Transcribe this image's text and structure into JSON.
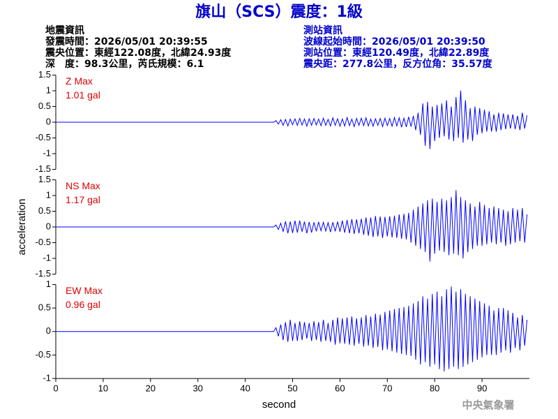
{
  "header": {
    "title": "旗山（SCS）震度：1級",
    "left": [
      "地震資訊",
      "發震時間：2026/05/01 20:39:55",
      "震央位置：東經122.08度，北緯24.93度",
      "深　度：98.3公里，芮氏規模：6.1"
    ],
    "right": [
      "測站資訊",
      "波線起始時間：2026/05/01 20:39:50",
      "測站位置：東經120.49度，北緯22.89度",
      "震央距：277.8公里，反方位角：35.57度"
    ],
    "footer": "中央氣象署"
  },
  "chart_data": [
    {
      "type": "line",
      "annotations": [
        "Z Max",
        "1.01 gal"
      ],
      "color": "#0000ff",
      "xlim": [
        0,
        100
      ],
      "ylim": [
        -1.5,
        1.5
      ],
      "yticks": [
        -1.5,
        -1,
        -0.5,
        0,
        0.5,
        1,
        1.5
      ],
      "x": [
        0,
        46,
        46.5,
        47,
        47.5,
        48,
        48.5,
        49,
        49.5,
        50,
        50.5,
        51,
        51.5,
        52,
        52.5,
        53,
        53.5,
        54,
        54.5,
        55,
        55.5,
        56,
        56.5,
        57,
        57.5,
        58,
        58.5,
        59,
        59.5,
        60,
        60.5,
        61,
        61.5,
        62,
        62.5,
        63,
        63.5,
        64,
        64.5,
        65,
        65.5,
        66,
        66.5,
        67,
        67.5,
        68,
        68.5,
        69,
        69.5,
        70,
        70.5,
        71,
        71.5,
        72,
        72.5,
        73,
        73.5,
        74,
        74.5,
        75,
        75.5,
        76,
        76.5,
        77,
        77.5,
        78,
        78.5,
        79,
        79.5,
        80,
        80.5,
        81,
        81.5,
        82,
        82.5,
        83,
        83.5,
        84,
        84.5,
        85,
        85.5,
        86,
        86.5,
        87,
        87.5,
        88,
        88.5,
        89,
        89.5,
        90,
        90.5,
        91,
        91.5,
        92,
        92.5,
        93,
        93.5,
        94,
        94.5,
        95,
        95.5,
        96,
        96.5,
        97,
        97.5,
        98,
        98.5,
        99,
        99.5
      ],
      "values": [
        0,
        0,
        0.05,
        -0.06,
        0.08,
        -0.1,
        0.09,
        -0.12,
        0.1,
        -0.08,
        0.11,
        -0.1,
        0.12,
        -0.09,
        0.1,
        -0.13,
        0.11,
        -0.1,
        0.12,
        -0.09,
        0.1,
        -0.11,
        0.13,
        -0.1,
        0.09,
        -0.12,
        0.14,
        -0.1,
        0.11,
        -0.13,
        0.1,
        -0.12,
        0.15,
        -0.11,
        0.1,
        -0.14,
        0.12,
        -0.1,
        0.13,
        -0.11,
        0.14,
        -0.12,
        0.1,
        -0.13,
        0.11,
        -0.1,
        0.12,
        -0.14,
        0.13,
        -0.11,
        0.12,
        -0.13,
        0.15,
        -0.12,
        0.14,
        -0.16,
        0.13,
        -0.15,
        0.17,
        -0.14,
        0.2,
        -0.25,
        0.3,
        -0.4,
        0.6,
        -0.75,
        0.65,
        -0.85,
        0.5,
        -0.6,
        0.55,
        -0.5,
        0.6,
        -0.45,
        0.7,
        -0.55,
        0.5,
        -0.6,
        0.8,
        -0.5,
        1.01,
        -0.65,
        0.7,
        -0.55,
        0.45,
        -0.6,
        0.5,
        -0.4,
        0.45,
        -0.35,
        0.4,
        -0.3,
        0.35,
        -0.3,
        0.25,
        -0.3,
        0.3,
        -0.25,
        0.28,
        -0.22,
        0.25,
        -0.2,
        0.25,
        -0.22,
        0.2,
        -0.25,
        0.3,
        -0.2,
        0.22
      ]
    },
    {
      "type": "line",
      "annotations": [
        "NS Max",
        "1.17 gal"
      ],
      "color": "#0000ff",
      "ylabel": "acceleration",
      "xlim": [
        0,
        100
      ],
      "ylim": [
        -1.5,
        1.5
      ],
      "yticks": [
        -1.5,
        -1,
        -0.5,
        0,
        0.5,
        1,
        1.5
      ],
      "x": [
        0,
        46,
        46.5,
        47,
        47.5,
        48,
        48.5,
        49,
        49.5,
        50,
        50.5,
        51,
        51.5,
        52,
        52.5,
        53,
        53.5,
        54,
        54.5,
        55,
        55.5,
        56,
        56.5,
        57,
        57.5,
        58,
        58.5,
        59,
        59.5,
        60,
        60.5,
        61,
        61.5,
        62,
        62.5,
        63,
        63.5,
        64,
        64.5,
        65,
        65.5,
        66,
        66.5,
        67,
        67.5,
        68,
        68.5,
        69,
        69.5,
        70,
        70.5,
        71,
        71.5,
        72,
        72.5,
        73,
        73.5,
        74,
        74.5,
        75,
        75.5,
        76,
        76.5,
        77,
        77.5,
        78,
        78.5,
        79,
        79.5,
        80,
        80.5,
        81,
        81.5,
        82,
        82.5,
        83,
        83.5,
        84,
        84.5,
        85,
        85.5,
        86,
        86.5,
        87,
        87.5,
        88,
        88.5,
        89,
        89.5,
        90,
        90.5,
        91,
        91.5,
        92,
        92.5,
        93,
        93.5,
        94,
        94.5,
        95,
        95.5,
        96,
        96.5,
        97,
        97.5,
        98,
        98.5,
        99,
        99.5
      ],
      "values": [
        0,
        0,
        0.06,
        -0.08,
        0.12,
        -0.15,
        0.18,
        -0.2,
        0.17,
        -0.19,
        0.2,
        -0.18,
        0.2,
        -0.15,
        0.17,
        -0.2,
        0.16,
        -0.18,
        0.15,
        -0.14,
        0.16,
        -0.12,
        0.15,
        -0.13,
        0.14,
        -0.16,
        0.15,
        -0.14,
        0.17,
        -0.15,
        0.2,
        -0.18,
        0.22,
        -0.2,
        0.25,
        -0.22,
        0.24,
        -0.2,
        0.26,
        -0.25,
        0.3,
        -0.28,
        0.3,
        -0.32,
        0.35,
        -0.3,
        0.33,
        -0.35,
        0.32,
        -0.3,
        0.34,
        -0.33,
        0.36,
        -0.35,
        0.4,
        -0.38,
        0.42,
        -0.4,
        0.45,
        -0.5,
        0.55,
        -0.6,
        0.65,
        -0.7,
        0.75,
        -0.8,
        0.85,
        -1.1,
        0.9,
        -0.85,
        0.8,
        -0.75,
        0.9,
        -0.8,
        0.85,
        -0.9,
        0.95,
        -0.85,
        1.17,
        -0.9,
        0.95,
        -1.0,
        0.85,
        -0.8,
        0.75,
        -0.7,
        0.65,
        -0.6,
        0.8,
        -0.6,
        0.7,
        -0.55,
        0.6,
        -0.5,
        0.65,
        -0.55,
        0.6,
        -0.5,
        0.55,
        -0.6,
        0.5,
        -0.55,
        0.6,
        -0.5,
        0.55,
        -0.45,
        0.6,
        -0.5,
        0.4
      ]
    },
    {
      "type": "line",
      "annotations": [
        "EW Max",
        "0.96 gal"
      ],
      "color": "#0000ff",
      "xlabel": "second",
      "xlim": [
        0,
        100
      ],
      "xticks": [
        0,
        10,
        20,
        30,
        40,
        50,
        60,
        70,
        80,
        90
      ],
      "ylim": [
        -1,
        1
      ],
      "yticks": [
        -1,
        -0.5,
        0,
        0.5,
        1
      ],
      "x": [
        0,
        46,
        46.5,
        47,
        47.5,
        48,
        48.5,
        49,
        49.5,
        50,
        50.5,
        51,
        51.5,
        52,
        52.5,
        53,
        53.5,
        54,
        54.5,
        55,
        55.5,
        56,
        56.5,
        57,
        57.5,
        58,
        58.5,
        59,
        59.5,
        60,
        60.5,
        61,
        61.5,
        62,
        62.5,
        63,
        63.5,
        64,
        64.5,
        65,
        65.5,
        66,
        66.5,
        67,
        67.5,
        68,
        68.5,
        69,
        69.5,
        70,
        70.5,
        71,
        71.5,
        72,
        72.5,
        73,
        73.5,
        74,
        74.5,
        75,
        75.5,
        76,
        76.5,
        77,
        77.5,
        78,
        78.5,
        79,
        79.5,
        80,
        80.5,
        81,
        81.5,
        82,
        82.5,
        83,
        83.5,
        84,
        84.5,
        85,
        85.5,
        86,
        86.5,
        87,
        87.5,
        88,
        88.5,
        89,
        89.5,
        90,
        90.5,
        91,
        91.5,
        92,
        92.5,
        93,
        93.5,
        94,
        94.5,
        95,
        95.5,
        96,
        96.5,
        97,
        97.5,
        98,
        98.5,
        99,
        99.5
      ],
      "values": [
        0,
        0,
        0.08,
        -0.1,
        0.15,
        -0.18,
        0.2,
        -0.22,
        0.25,
        -0.2,
        0.18,
        -0.2,
        0.22,
        -0.18,
        0.2,
        -0.15,
        0.18,
        -0.2,
        0.22,
        -0.18,
        0.2,
        -0.22,
        0.25,
        -0.2,
        0.18,
        -0.22,
        0.25,
        -0.28,
        0.3,
        -0.25,
        0.28,
        -0.26,
        0.3,
        -0.28,
        0.32,
        -0.3,
        0.28,
        -0.26,
        0.3,
        -0.32,
        0.35,
        -0.3,
        0.32,
        -0.35,
        0.38,
        -0.33,
        0.36,
        -0.4,
        0.42,
        -0.38,
        0.45,
        -0.42,
        0.48,
        -0.45,
        0.5,
        -0.48,
        0.52,
        -0.5,
        0.55,
        -0.52,
        0.6,
        -0.6,
        0.65,
        -0.7,
        0.75,
        -0.65,
        0.7,
        -0.75,
        0.8,
        -0.7,
        0.85,
        -0.8,
        0.75,
        -0.85,
        0.9,
        -0.8,
        0.96,
        -0.75,
        0.85,
        -0.8,
        0.9,
        -0.75,
        0.8,
        -0.7,
        0.75,
        -0.65,
        0.7,
        -0.6,
        0.65,
        -0.55,
        0.6,
        -0.5,
        0.55,
        -0.5,
        0.45,
        -0.5,
        0.5,
        -0.45,
        0.5,
        -0.4,
        0.45,
        -0.45,
        0.4,
        -0.35,
        0.3,
        -0.4,
        0.35,
        -0.3,
        0.25
      ]
    }
  ]
}
